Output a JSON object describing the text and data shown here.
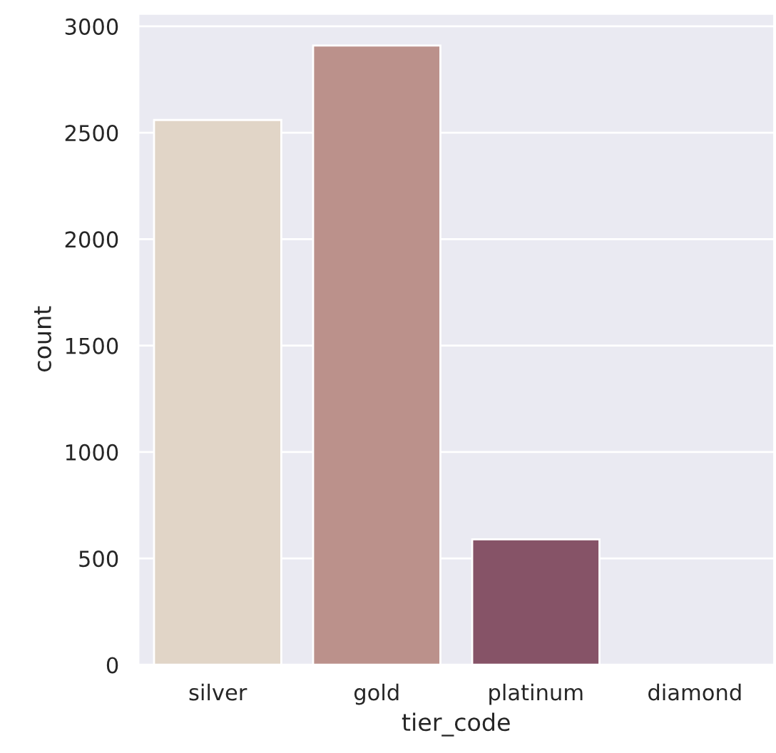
{
  "chart_data": {
    "type": "bar",
    "xlabel": "tier_code",
    "ylabel": "count",
    "categories": [
      "silver",
      "gold",
      "platinum",
      "diamond"
    ],
    "values": [
      2560,
      2910,
      590,
      0
    ],
    "colors": [
      "#e1d5c7",
      "#bb918b",
      "#865367",
      "#2e1e3b"
    ],
    "ylim": [
      0,
      3060
    ],
    "yticks": [
      0,
      500,
      1000,
      1500,
      2000,
      2500,
      3000
    ],
    "grid": "y"
  }
}
